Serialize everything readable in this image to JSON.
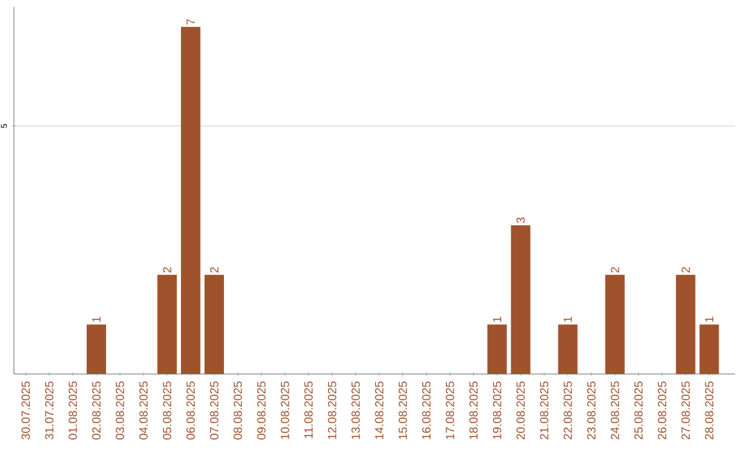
{
  "chart_data": {
    "type": "bar",
    "categories": [
      "30.07.2025",
      "31.07.2025",
      "01.08.2025",
      "02.08.2025",
      "03.08.2025",
      "04.08.2025",
      "05.08.2025",
      "06.08.2025",
      "07.08.2025",
      "08.08.2025",
      "09.08.2025",
      "10.08.2025",
      "11.08.2025",
      "12.08.2025",
      "13.08.2025",
      "14.08.2025",
      "15.08.2025",
      "16.08.2025",
      "17.08.2025",
      "18.08.2025",
      "19.08.2025",
      "20.08.2025",
      "21.08.2025",
      "22.08.2025",
      "23.08.2025",
      "24.08.2025",
      "25.08.2025",
      "26.08.2025",
      "27.08.2025",
      "28.08.2025"
    ],
    "values": [
      0,
      0,
      0,
      1,
      0,
      0,
      2,
      7,
      2,
      0,
      0,
      0,
      0,
      0,
      0,
      0,
      0,
      0,
      0,
      0,
      1,
      3,
      0,
      1,
      0,
      2,
      0,
      0,
      2,
      1
    ],
    "value_labels": [
      null,
      null,
      null,
      "1",
      null,
      null,
      "2",
      "7",
      "2",
      null,
      null,
      null,
      null,
      null,
      null,
      null,
      null,
      null,
      null,
      null,
      "1",
      "3",
      null,
      "1",
      null,
      "2",
      null,
      null,
      "2",
      "1"
    ],
    "color": "#a0522d",
    "ylim": [
      0,
      7.4
    ],
    "yticks": [
      5
    ],
    "grid": "y"
  }
}
